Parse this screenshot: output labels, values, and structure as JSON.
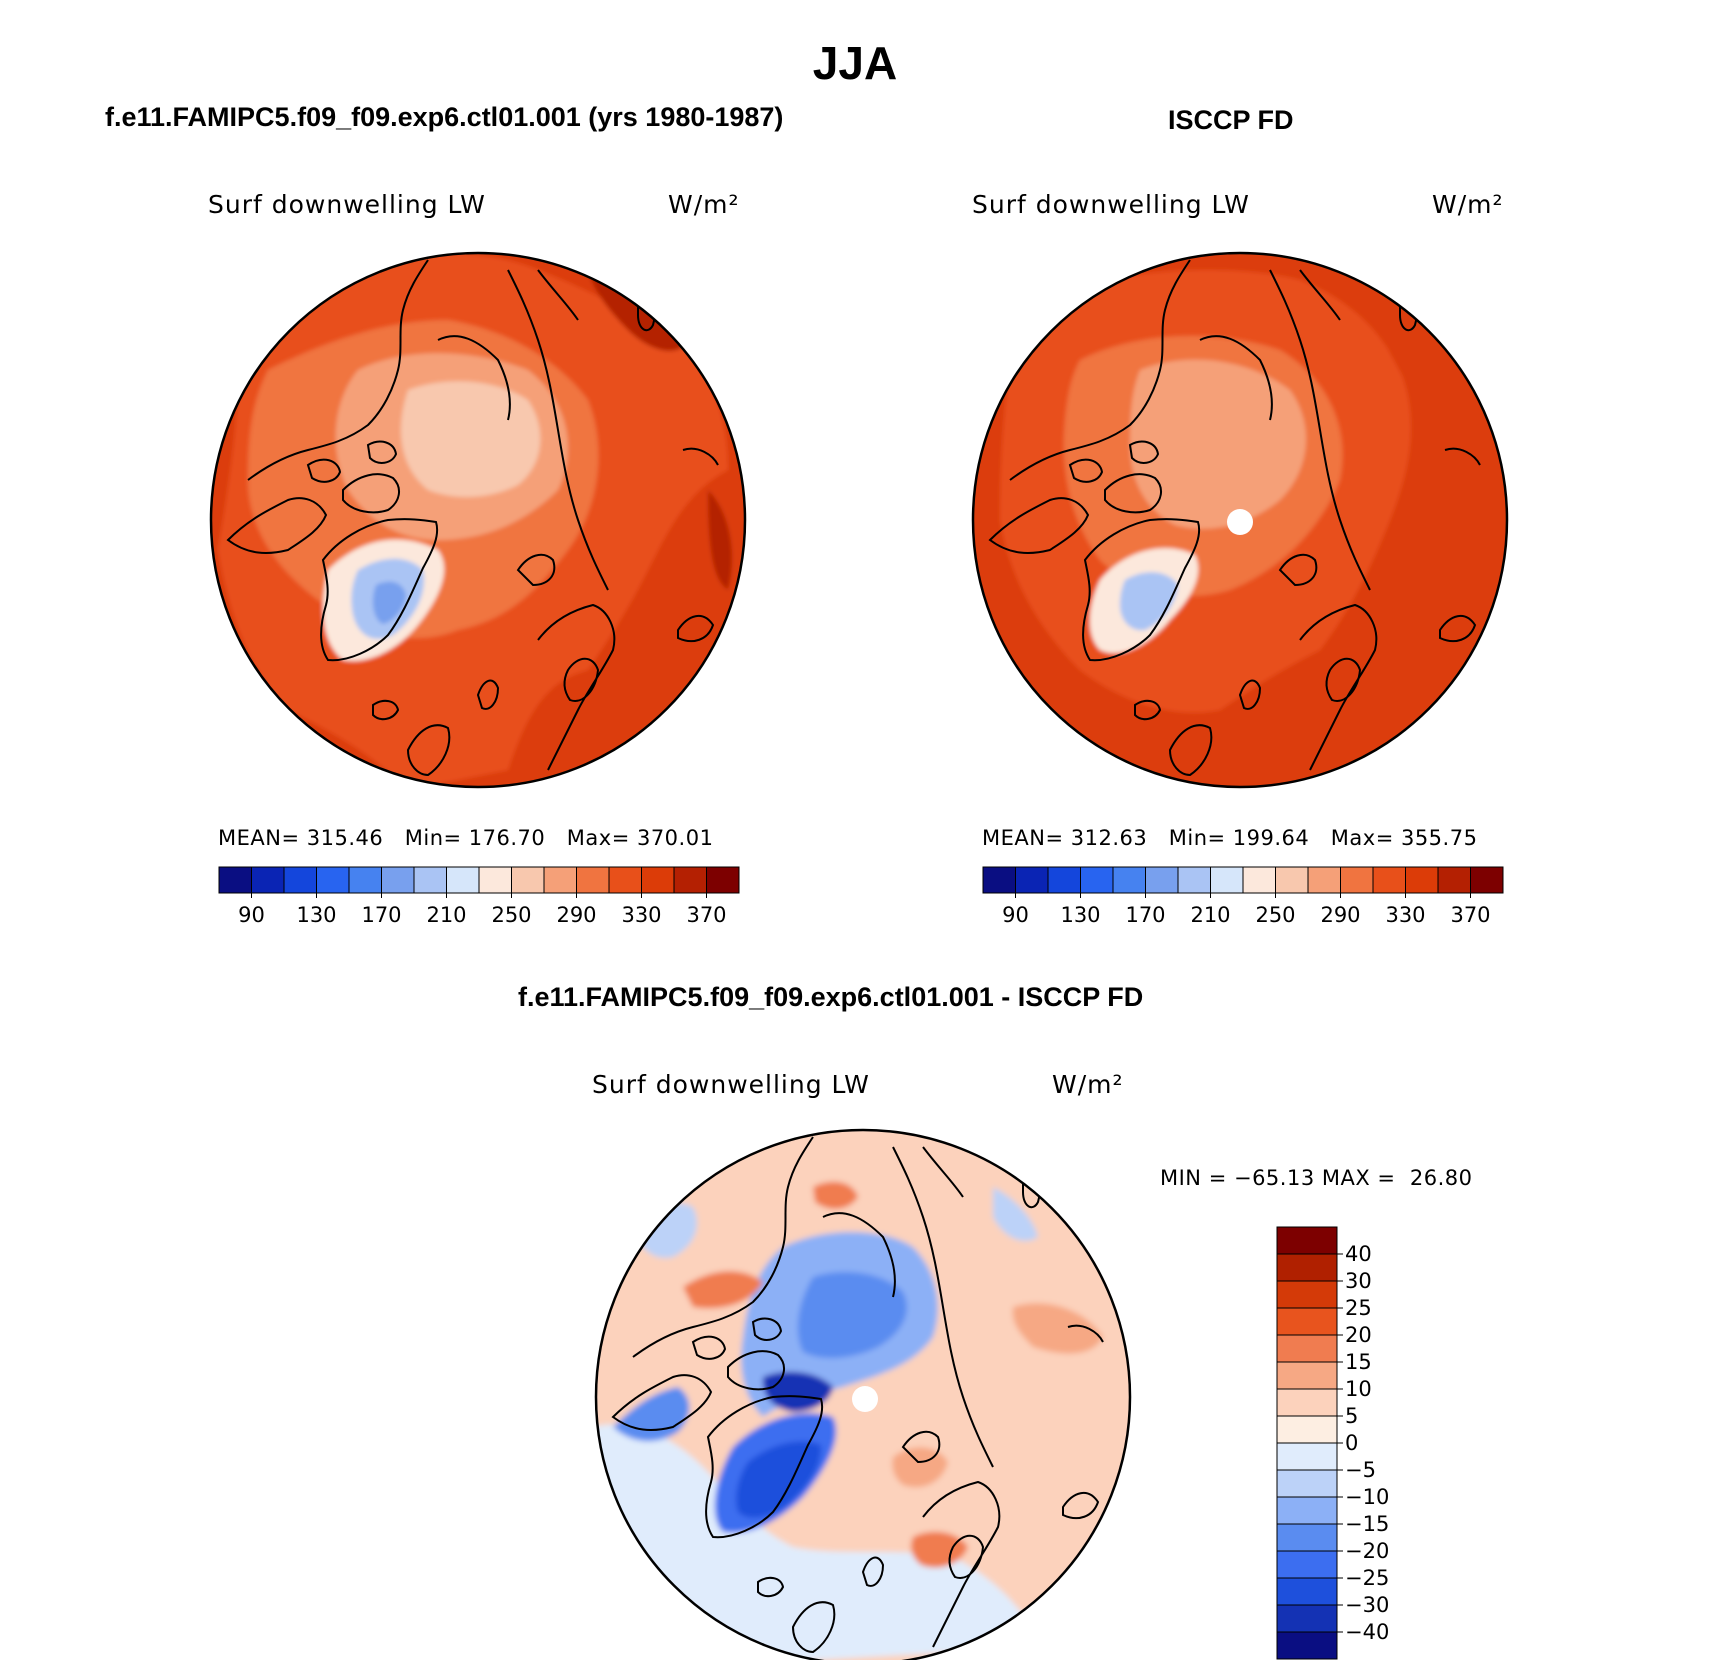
{
  "title": "JJA",
  "palettes": {
    "abs": [
      "#0a0e82",
      "#0a24b4",
      "#1446dc",
      "#2864f0",
      "#4682f0",
      "#78a0ee",
      "#aac4f4",
      "#d6e6fa",
      "#fce8dc",
      "#f8c8ae",
      "#f5a078",
      "#f07440",
      "#e8501a",
      "#dc3c08",
      "#b42002",
      "#7d0000"
    ],
    "diff": [
      "#0a0e82",
      "#1432b4",
      "#1e50dc",
      "#3c6ef0",
      "#5a8cf0",
      "#8cb0f6",
      "#bcd2f8",
      "#e0ecfc",
      "#fdeee2",
      "#fcd2bc",
      "#f6a884",
      "#f07c50",
      "#e8541e",
      "#d43a08",
      "#b02000",
      "#7d0000"
    ]
  },
  "panels": {
    "model": {
      "title": "f.e11.FAMIPC5.f09_f09.exp6.ctl01.001 (yrs 1980-1987)",
      "variable": "Surf downwelling LW",
      "units": "W/m²",
      "stats": "MEAN= 315.46   Min= 176.70   Max= 370.01",
      "colorbar_ticks": [
        "90",
        "130",
        "170",
        "210",
        "250",
        "290",
        "330",
        "370"
      ]
    },
    "obs": {
      "title": "ISCCP FD",
      "variable": "Surf downwelling LW",
      "units": "W/m²",
      "stats": "MEAN= 312.63   Min= 199.64   Max= 355.75",
      "colorbar_ticks": [
        "90",
        "130",
        "170",
        "210",
        "250",
        "290",
        "330",
        "370"
      ]
    },
    "diff": {
      "title": "f.e11.FAMIPC5.f09_f09.exp6.ctl01.001 - ISCCP FD",
      "variable": "Surf downwelling LW",
      "units": "W/m²",
      "stats": "MIN = −65.13 MAX =  26.80",
      "colorbar_ticks": [
        "40",
        "30",
        "25",
        "20",
        "15",
        "10",
        "5",
        "0",
        "−5",
        "−10",
        "−15",
        "−20",
        "−25",
        "−30",
        "−40"
      ]
    }
  },
  "chart_data": [
    {
      "type": "heatmap",
      "projection": "north polar stereographic",
      "title": "f.e11.FAMIPC5.f09_f09.exp6.ctl01.001 (yrs 1980-1987)",
      "variable": "Surf downwelling LW",
      "units": "W/m²",
      "season": "JJA",
      "mean": 315.46,
      "min": 176.7,
      "max": 370.01,
      "contour_levels": [
        90,
        110,
        130,
        150,
        170,
        190,
        210,
        230,
        250,
        270,
        290,
        310,
        330,
        350,
        370
      ],
      "colorbar_ticks": [
        90,
        130,
        170,
        210,
        250,
        290,
        330,
        370
      ]
    },
    {
      "type": "heatmap",
      "projection": "north polar stereographic",
      "title": "ISCCP FD",
      "variable": "Surf downwelling LW",
      "units": "W/m²",
      "season": "JJA",
      "mean": 312.63,
      "min": 199.64,
      "max": 355.75,
      "contour_levels": [
        90,
        110,
        130,
        150,
        170,
        190,
        210,
        230,
        250,
        270,
        290,
        310,
        330,
        350,
        370
      ],
      "colorbar_ticks": [
        90,
        130,
        170,
        210,
        250,
        290,
        330,
        370
      ]
    },
    {
      "type": "heatmap",
      "projection": "north polar stereographic",
      "title": "f.e11.FAMIPC5.f09_f09.exp6.ctl01.001 - ISCCP FD",
      "variable": "Surf downwelling LW",
      "units": "W/m²",
      "season": "JJA",
      "min": -65.13,
      "max": 26.8,
      "contour_levels": [
        -40,
        -30,
        -25,
        -20,
        -15,
        -10,
        -5,
        0,
        5,
        10,
        15,
        20,
        25,
        30,
        40
      ]
    }
  ]
}
